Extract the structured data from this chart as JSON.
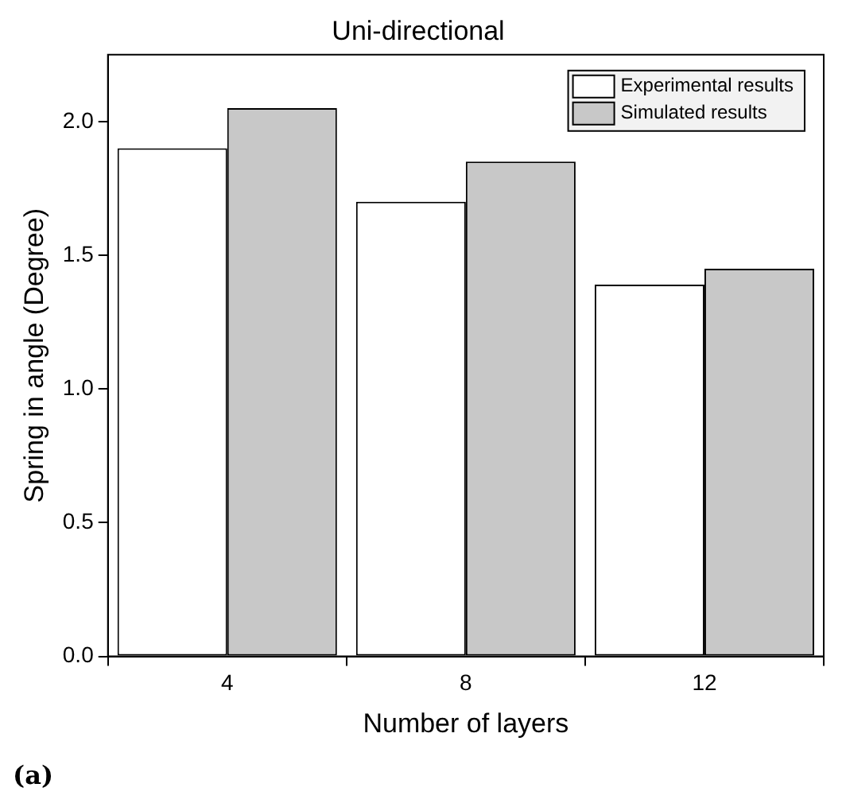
{
  "chart_data": {
    "type": "bar",
    "title": "Uni-directional",
    "xlabel": "Number of layers",
    "ylabel": "Spring in angle (Degree)",
    "categories": [
      "4",
      "8",
      "12"
    ],
    "series": [
      {
        "name": "Experimental results",
        "color": "#ffffff",
        "values": [
          1.9,
          1.7,
          1.39
        ]
      },
      {
        "name": "Simulated results",
        "color": "#c8c8c8",
        "values": [
          2.05,
          1.85,
          1.45
        ]
      }
    ],
    "ylim": [
      0,
      2.25
    ],
    "yticks": [
      {
        "value": 0,
        "label": "0.0"
      },
      {
        "value": 0.5,
        "label": "0.5"
      },
      {
        "value": 1,
        "label": "1.0"
      },
      {
        "value": 1.5,
        "label": "1.5"
      },
      {
        "value": 2,
        "label": "2.0"
      }
    ],
    "grid": false,
    "legend": "top right",
    "annotations": [
      "(a)"
    ]
  }
}
